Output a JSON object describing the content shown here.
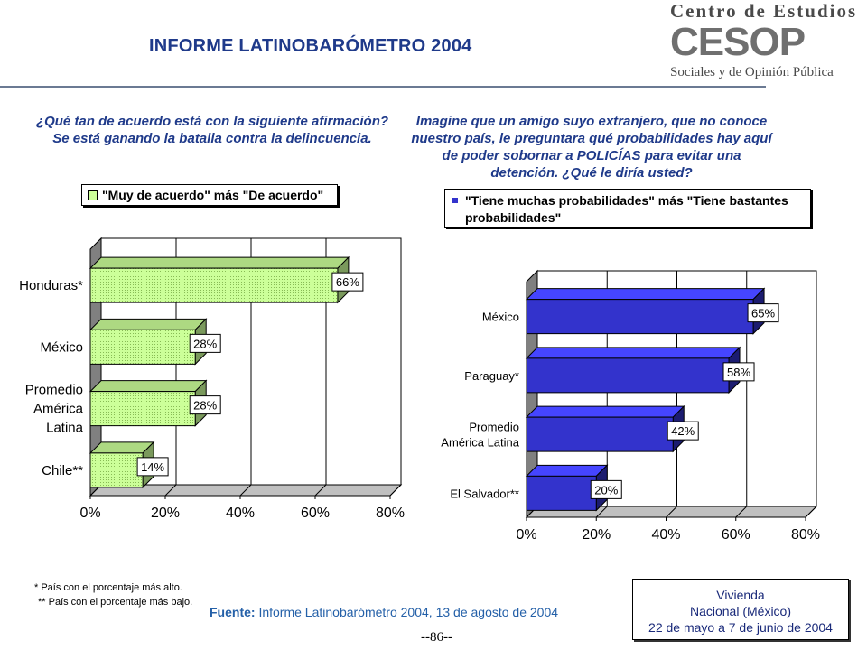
{
  "header": {
    "title": "INFORME LATINOBARÓMETRO 2004",
    "logo_top": "Centro de Estudios",
    "logo_mid": "CESOP",
    "logo_bottom": "Sociales y de Opinión Pública"
  },
  "colors": {
    "title": "#1f3a8a",
    "left_bar": "#ccff99",
    "right_bar": "#3333cc"
  },
  "left_question": "¿Qué tan de acuerdo está con la siguiente afirmación? Se está ganando la batalla contra la delincuencia.",
  "right_question": "Imagine que un amigo suyo extranjero, que no conoce nuestro país, le preguntara qué probabilidades hay aquí de poder sobornar a POLICÍAS para evitar una detención. ¿Qué le diría usted?",
  "chart_data": [
    {
      "type": "bar",
      "orientation": "horizontal",
      "title": "¿Qué tan de acuerdo está con la siguiente afirmación? Se está ganando la batalla contra la delincuencia.",
      "legend": "\"Muy de acuerdo\" más \"De acuerdo\"",
      "categories": [
        "Honduras*",
        "México",
        "Promedio América Latina",
        "Chile**"
      ],
      "category_lines": [
        [
          "Honduras*"
        ],
        [
          "México"
        ],
        [
          "Promedio",
          "América",
          "Latina"
        ],
        [
          "Chile**"
        ]
      ],
      "values": [
        66,
        28,
        28,
        14
      ],
      "value_labels": [
        "66%",
        "28%",
        "28%",
        "14%"
      ],
      "xlim": [
        0,
        80
      ],
      "xticks": [
        "0%",
        "20%",
        "40%",
        "60%",
        "80%"
      ],
      "grid": true
    },
    {
      "type": "bar",
      "orientation": "horizontal",
      "title": "Imagine que un amigo suyo extranjero, que no conoce nuestro país, le preguntara qué probabilidades hay aquí de poder sobornar a POLICÍAS para evitar una detención. ¿Qué le diría usted?",
      "legend": "\"Tiene muchas probabilidades\" más \"Tiene bastantes probabilidades\"",
      "legend_lines": [
        "\"Tiene muchas probabilidades\" más \"Tiene bastantes",
        "probabilidades\""
      ],
      "categories": [
        "México",
        "Paraguay*",
        "Promedio América Latina",
        "El Salvador**"
      ],
      "category_lines": [
        [
          "México"
        ],
        [
          "Paraguay*"
        ],
        [
          "Promedio",
          "América Latina"
        ],
        [
          "El Salvador**"
        ]
      ],
      "values": [
        65,
        58,
        42,
        20
      ],
      "value_labels": [
        "65%",
        "58%",
        "42%",
        "20%"
      ],
      "xlim": [
        0,
        80
      ],
      "xticks": [
        "0%",
        "20%",
        "40%",
        "60%",
        "80%"
      ],
      "grid": true
    }
  ],
  "notes": {
    "highest": "* País con el porcentaje más alto.",
    "lowest": "** País con el porcentaje más bajo."
  },
  "source": {
    "label": "Fuente:",
    "text": "Informe Latinobarómetro 2004, 13 de agosto de 2004"
  },
  "survey_box": {
    "line1": "Vivienda",
    "line2": "Nacional (México)",
    "line3": "22 de mayo a 7 de junio de 2004"
  },
  "page_number": "--86--"
}
